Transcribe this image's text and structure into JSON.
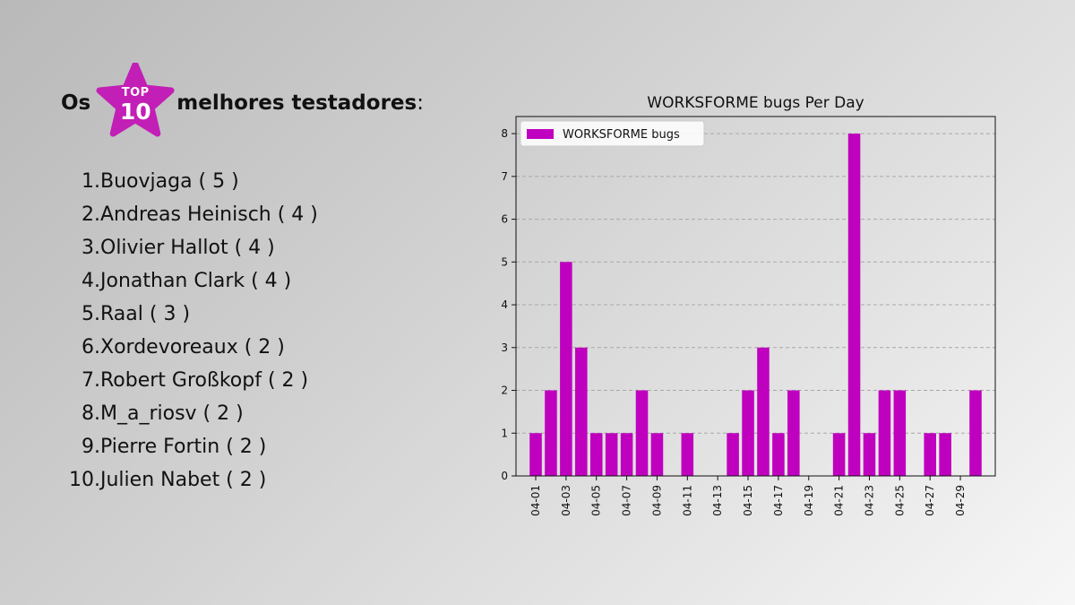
{
  "header": {
    "prefix": "Os",
    "badge_top": "TOP",
    "badge_number": "10",
    "suffix": "melhores testadores",
    "colon": ":",
    "badge_color": "#c21fb6"
  },
  "ranking": [
    {
      "rank": "1.",
      "text": "Buovjaga ( 5 )"
    },
    {
      "rank": "2.",
      "text": "Andreas Heinisch ( 4 )"
    },
    {
      "rank": "3.",
      "text": "Olivier Hallot ( 4 )"
    },
    {
      "rank": "4.",
      "text": "Jonathan Clark ( 4 )"
    },
    {
      "rank": "5.",
      "text": "Raal ( 3 )"
    },
    {
      "rank": "6.",
      "text": "Xordevoreaux ( 2 )"
    },
    {
      "rank": "7.",
      "text": "Robert Großkopf ( 2 )"
    },
    {
      "rank": "8.",
      "text": "M_a_riosv ( 2 )"
    },
    {
      "rank": "9.",
      "text": "Pierre Fortin ( 2 )"
    },
    {
      "rank": "10.",
      "text": "Julien Nabet ( 2 )"
    }
  ],
  "chart_data": {
    "type": "bar",
    "title": "WORKSFORME bugs Per Day",
    "xlabel": "",
    "ylabel": "",
    "x": [
      "04-01",
      "04-02",
      "04-03",
      "04-04",
      "04-05",
      "04-06",
      "04-07",
      "04-08",
      "04-09",
      "04-10",
      "04-11",
      "04-12",
      "04-13",
      "04-14",
      "04-15",
      "04-16",
      "04-17",
      "04-18",
      "04-19",
      "04-20",
      "04-21",
      "04-22",
      "04-23",
      "04-24",
      "04-25",
      "04-26",
      "04-27",
      "04-28",
      "04-29",
      "04-30"
    ],
    "values": [
      1,
      2,
      5,
      3,
      1,
      1,
      1,
      2,
      1,
      0,
      1,
      0,
      0,
      1,
      2,
      3,
      1,
      2,
      0,
      0,
      1,
      8,
      1,
      2,
      2,
      0,
      1,
      1,
      0,
      2
    ],
    "xticks": [
      "04-01",
      "04-03",
      "04-05",
      "04-07",
      "04-09",
      "04-11",
      "04-13",
      "04-15",
      "04-17",
      "04-19",
      "04-21",
      "04-23",
      "04-25",
      "04-27",
      "04-29"
    ],
    "ylim": [
      0,
      8.4
    ],
    "yticks": [
      0,
      1,
      2,
      3,
      4,
      5,
      6,
      7,
      8
    ],
    "legend": {
      "label": "WORKSFORME bugs",
      "position": "top-left"
    },
    "grid": "y-dashed",
    "bar_color": "#bf00bf"
  }
}
